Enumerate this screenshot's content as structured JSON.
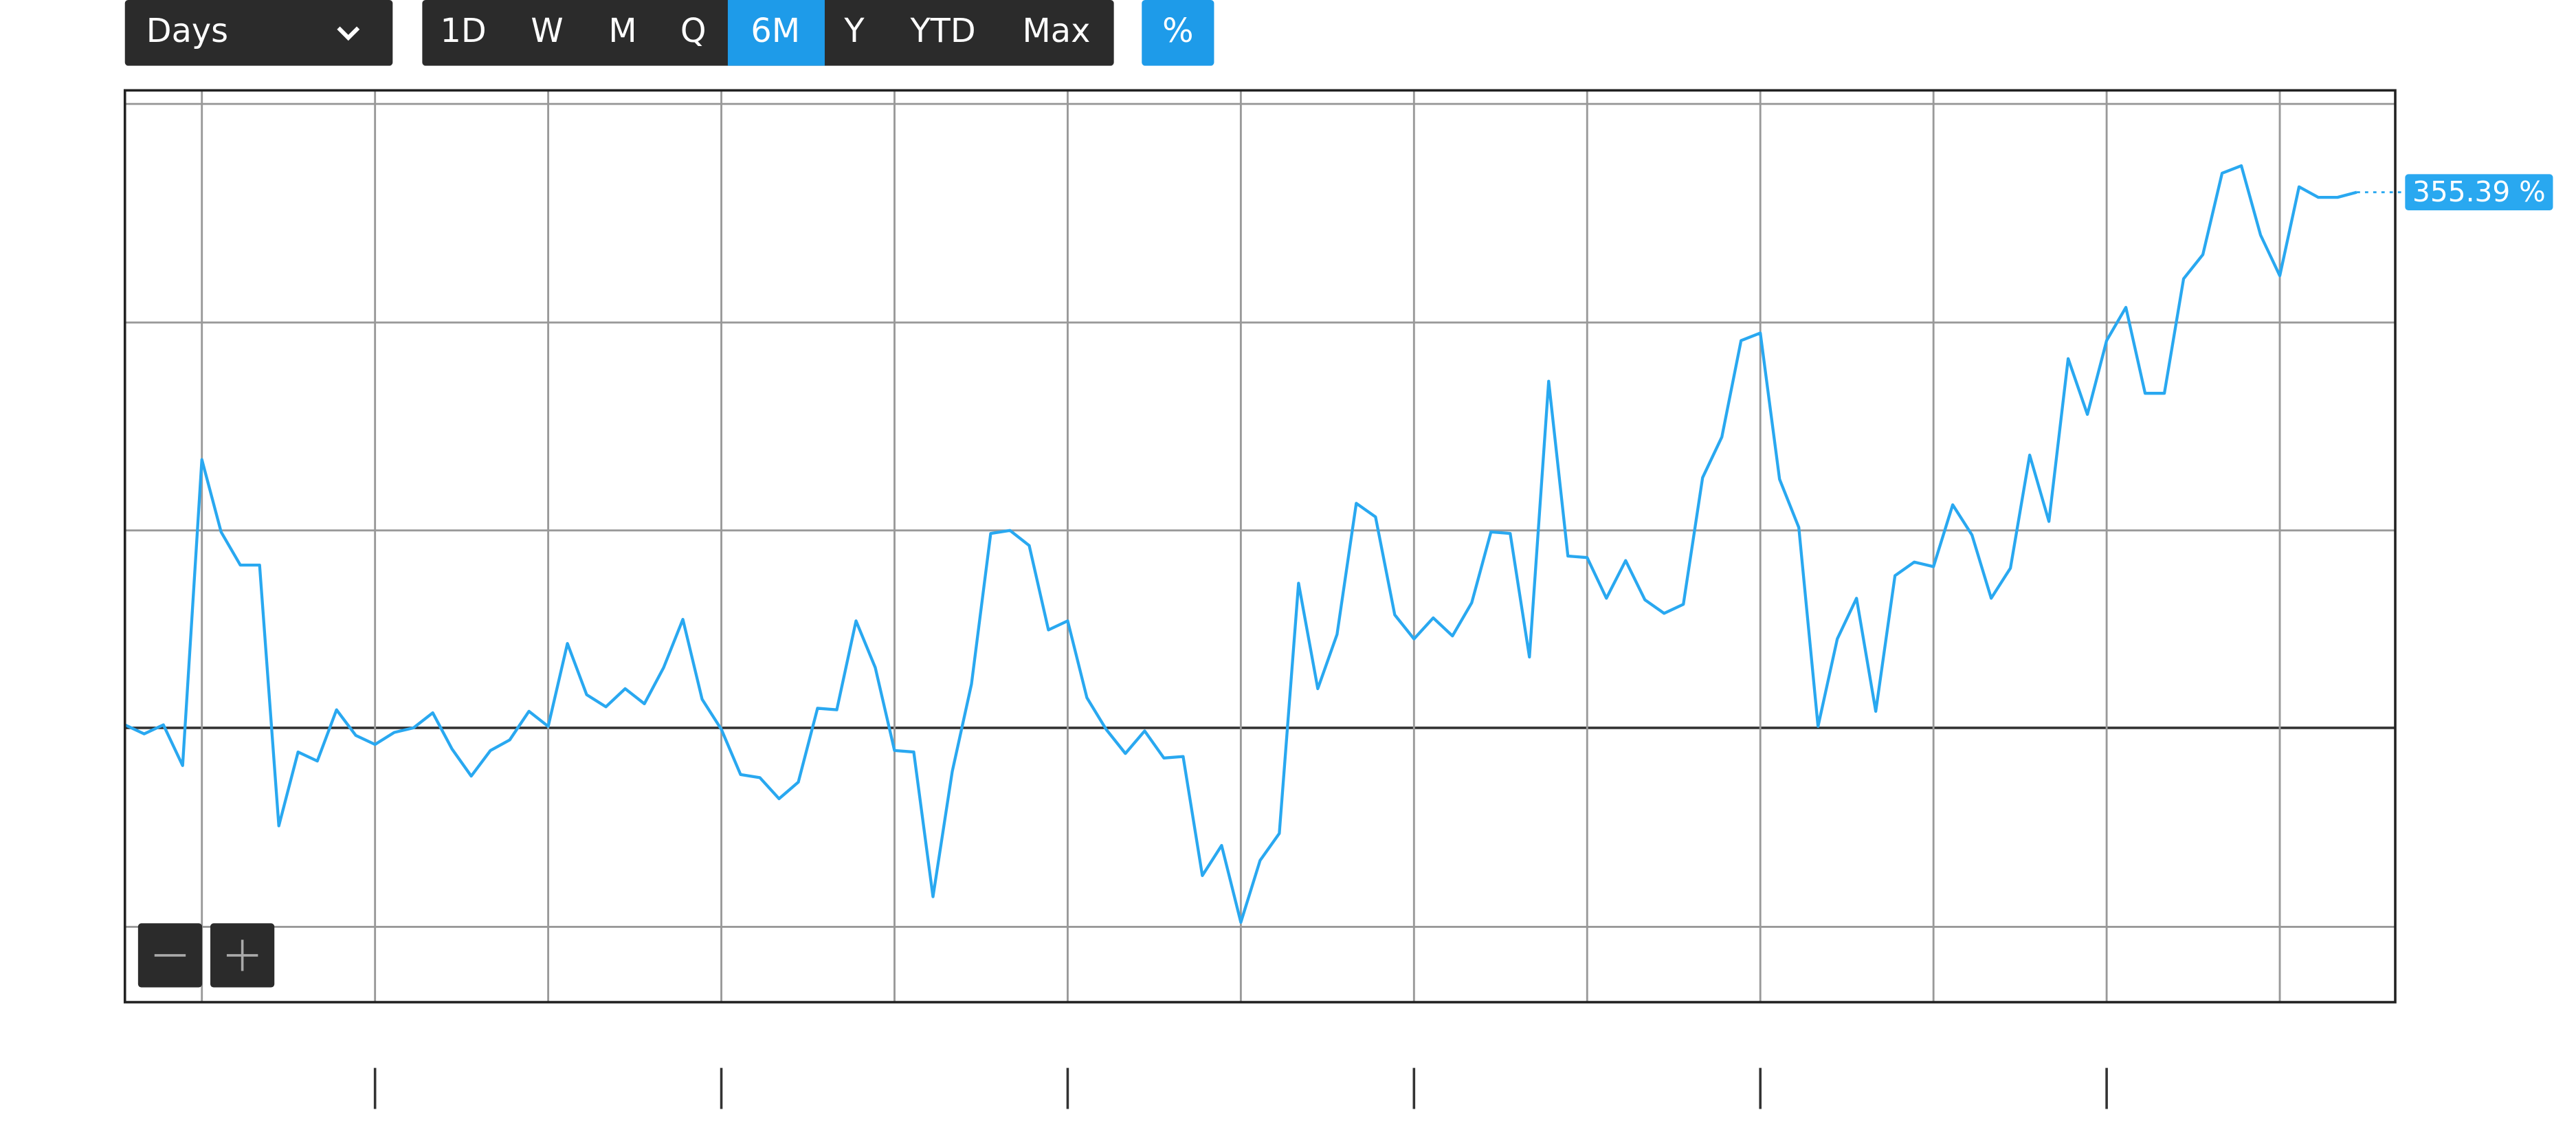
{
  "ui": {
    "interval": "Days",
    "ranges": [
      "1D",
      "W",
      "M",
      "Q",
      "6M",
      "Y",
      "YTD",
      "Max"
    ],
    "percent": "%"
  },
  "chart_data": {
    "type": "line",
    "color": "#29a8f0",
    "values": [
      2,
      -4,
      2,
      -25,
      178,
      130,
      108,
      108,
      -65,
      -16,
      -22,
      12,
      -5,
      -11,
      -3,
      0,
      10,
      -14,
      -32,
      -15,
      -8,
      11,
      1,
      56,
      22,
      14,
      26,
      16,
      40,
      72,
      19,
      -1,
      -31,
      -33,
      -47,
      -36,
      13,
      12,
      71,
      40,
      -15,
      -16,
      -112,
      -29,
      29,
      129,
      131,
      121,
      65,
      71,
      20,
      -1,
      -17,
      -2,
      -20,
      -19,
      -98,
      -78,
      -129,
      -88,
      -70,
      96,
      26,
      62,
      149,
      140,
      75,
      59,
      73,
      61,
      83,
      130,
      129,
      47,
      230,
      114,
      113,
      86,
      111,
      85,
      76,
      82,
      166,
      193,
      257,
      262,
      165,
      133,
      1,
      59,
      86,
      11,
      101,
      110,
      107,
      148,
      128,
      86,
      106,
      181,
      137,
      245,
      208,
      257,
      279,
      222,
      222,
      298,
      314,
      368,
      373,
      327,
      300,
      359,
      352,
      352,
      355.39
    ],
    "value_labels": [
      null,
      null,
      null,
      null,
      null,
      null,
      null,
      null,
      null,
      null,
      null,
      null,
      null,
      null,
      null,
      null,
      null,
      null,
      null,
      null,
      null,
      null,
      null,
      null,
      null,
      null,
      null,
      null,
      null,
      null,
      null,
      null,
      null,
      null,
      null,
      null,
      null,
      null,
      null,
      null,
      null,
      null,
      null,
      null,
      null,
      null,
      null,
      null,
      null,
      null,
      null,
      null,
      null,
      null,
      null,
      null,
      null,
      null,
      null,
      null,
      null,
      null,
      null,
      null,
      null,
      null,
      null,
      null,
      null,
      null,
      null,
      null,
      null,
      null,
      null,
      null,
      null,
      null,
      null,
      null,
      null,
      null,
      null,
      null,
      null,
      null,
      null,
      null,
      null,
      null,
      null,
      null,
      null,
      null,
      null,
      null,
      null,
      null,
      null,
      null,
      null,
      null,
      null,
      null,
      null,
      null,
      null,
      null,
      null,
      null,
      null,
      null,
      null,
      null,
      null,
      null,
      "355.39 %"
    ],
    "xlim": [
      0,
      118
    ],
    "xticks": [
      4,
      13,
      22,
      31,
      40,
      49,
      58,
      67,
      76,
      85,
      94,
      103,
      112
    ],
    "ylim": [
      -182,
      423
    ],
    "yticks": [
      -132,
      0,
      131,
      269,
      414
    ],
    "grid": true
  }
}
